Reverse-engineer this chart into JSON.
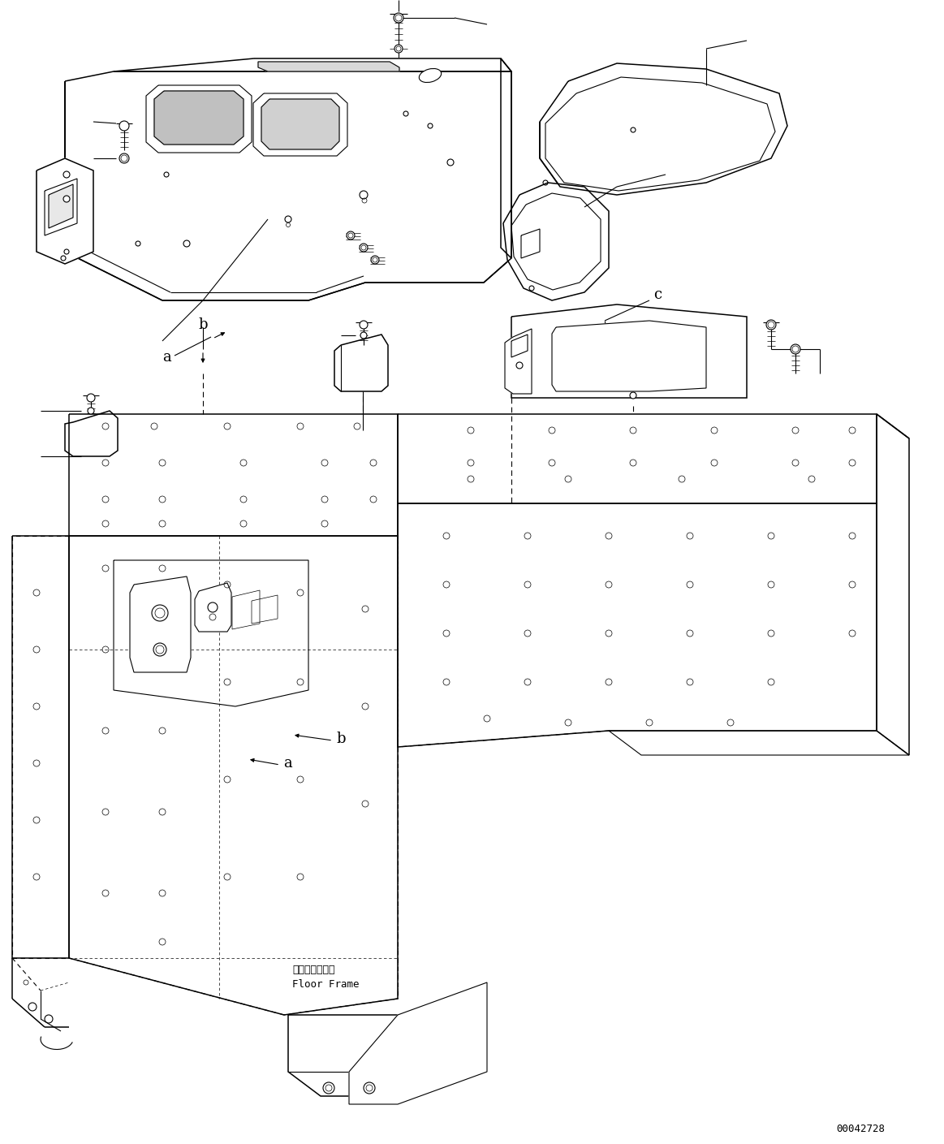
{
  "background_color": "#ffffff",
  "line_color": "#000000",
  "fig_width": 11.63,
  "fig_height": 14.09,
  "dpi": 100,
  "watermark": "00042728",
  "floor_frame_jp": "フロアフレーム",
  "floor_frame_en": "Floor Frame",
  "label_a": "a",
  "label_b": "b",
  "label_c": "c"
}
